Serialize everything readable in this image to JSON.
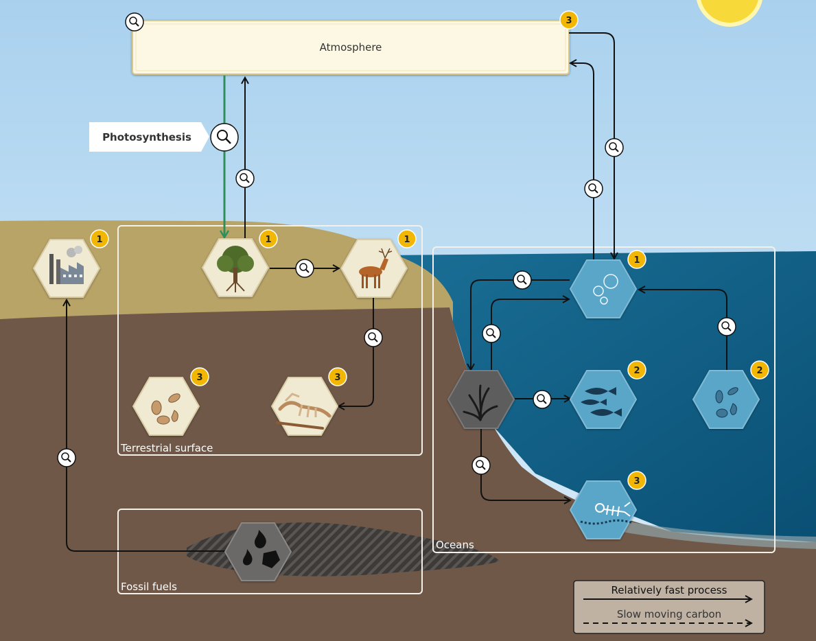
{
  "atmosphere": {
    "label": "Atmosphere",
    "badge": "3"
  },
  "photosynthesis": {
    "label": "Photosynthesis"
  },
  "regions": {
    "terrestrial": "Terrestrial surface",
    "fossil": "Fossil fuels",
    "oceans": "Oceans"
  },
  "badges": {
    "factory": "1",
    "tree": "1",
    "deer": "1",
    "soil_microbes": "3",
    "fossils_dead": "3",
    "ocean_surface": "1",
    "fish": "2",
    "plankton": "2",
    "deep_remains": "3"
  },
  "legend": {
    "fast": "Relatively fast process",
    "slow": "Slow moving carbon"
  },
  "colors": {
    "sky_top": "#aed4ef",
    "sky_bottom": "#d7ecfa",
    "land_surface": "#b9a468",
    "soil": "#6f5848",
    "ocean": "#0f5f88",
    "badge": "#f2b705",
    "photosynthesis_arrow": "#2f8f5b",
    "atmosphere_box": "#fdf8e4"
  }
}
